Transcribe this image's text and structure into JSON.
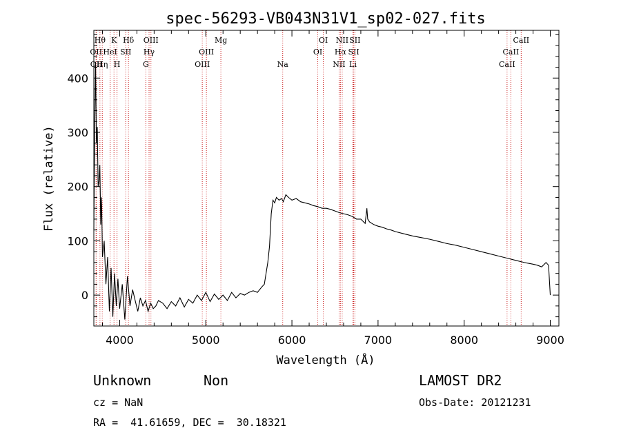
{
  "chart_data": {
    "type": "line",
    "title": "spec-56293-VB043N31V1_sp02-027.fits",
    "xlabel": "Wavelength (Å)",
    "ylabel": "Flux (relative)",
    "xlim": [
      3700,
      9100
    ],
    "ylim": [
      -57,
      488
    ],
    "xticks": [
      4000,
      5000,
      6000,
      7000,
      8000,
      9000
    ],
    "yticks": [
      0,
      100,
      200,
      300,
      400
    ],
    "grid": false,
    "line_color": "#000000",
    "marker_color": "#cc2222",
    "spectrum": {
      "x": [
        3700,
        3710,
        3720,
        3730,
        3740,
        3750,
        3760,
        3770,
        3780,
        3790,
        3800,
        3820,
        3840,
        3860,
        3880,
        3900,
        3920,
        3940,
        3960,
        3980,
        4000,
        4030,
        4060,
        4090,
        4120,
        4150,
        4180,
        4210,
        4240,
        4270,
        4300,
        4330,
        4360,
        4390,
        4420,
        4450,
        4500,
        4550,
        4600,
        4650,
        4700,
        4750,
        4800,
        4850,
        4900,
        4950,
        5000,
        5050,
        5100,
        5150,
        5200,
        5250,
        5300,
        5350,
        5400,
        5450,
        5500,
        5550,
        5600,
        5650,
        5680,
        5700,
        5720,
        5740,
        5760,
        5780,
        5800,
        5820,
        5850,
        5880,
        5900,
        5930,
        5960,
        6000,
        6050,
        6100,
        6150,
        6200,
        6250,
        6300,
        6350,
        6400,
        6450,
        6500,
        6550,
        6600,
        6650,
        6700,
        6750,
        6800,
        6850,
        6870,
        6880,
        6890,
        6900,
        6950,
        7000,
        7050,
        7100,
        7150,
        7200,
        7300,
        7400,
        7500,
        7600,
        7700,
        7800,
        7900,
        8000,
        8100,
        8200,
        8300,
        8400,
        8500,
        8600,
        8700,
        8800,
        8850,
        8900,
        8950,
        8980,
        9000
      ],
      "y": [
        120,
        300,
        430,
        280,
        310,
        200,
        210,
        240,
        130,
        180,
        70,
        100,
        20,
        70,
        -30,
        50,
        -40,
        40,
        -20,
        30,
        -25,
        20,
        -45,
        35,
        -20,
        10,
        -10,
        -30,
        -5,
        -20,
        -10,
        -30,
        -15,
        -25,
        -20,
        -10,
        -15,
        -25,
        -12,
        -20,
        -5,
        -22,
        -8,
        -15,
        0,
        -10,
        5,
        -12,
        2,
        -8,
        0,
        -10,
        5,
        -5,
        3,
        0,
        5,
        8,
        5,
        15,
        20,
        40,
        60,
        90,
        150,
        175,
        170,
        180,
        175,
        178,
        172,
        185,
        180,
        175,
        178,
        172,
        170,
        168,
        165,
        163,
        160,
        160,
        158,
        155,
        152,
        150,
        148,
        145,
        140,
        140,
        132,
        160,
        140,
        138,
        135,
        130,
        127,
        125,
        122,
        120,
        117,
        113,
        109,
        106,
        103,
        99,
        95,
        92,
        88,
        84,
        80,
        76,
        72,
        68,
        64,
        60,
        57,
        55,
        52,
        60,
        55,
        0
      ]
    },
    "line_markers": [
      {
        "wl": 3726,
        "label": "OII",
        "row": 1
      },
      {
        "wl": 3729,
        "label": "OII",
        "row": 2
      },
      {
        "wl": 3771,
        "label": "Hθ",
        "row": 0
      },
      {
        "wl": 3798,
        "label": "Hη",
        "row": 2
      },
      {
        "wl": 3889,
        "label": "HeI",
        "row": 1
      },
      {
        "wl": 3934,
        "label": "K",
        "row": 0
      },
      {
        "wl": 3969,
        "label": "H",
        "row": 2
      },
      {
        "wl": 4070,
        "label": "SII",
        "row": 1
      },
      {
        "wl": 4102,
        "label": "Hδ",
        "row": 0
      },
      {
        "wl": 4304,
        "label": "G",
        "row": 2
      },
      {
        "wl": 4341,
        "label": "Hγ",
        "row": 1
      },
      {
        "wl": 4363,
        "label": "OIII",
        "row": 0
      },
      {
        "wl": 4959,
        "label": "OIII",
        "row": 2
      },
      {
        "wl": 5007,
        "label": "OIII",
        "row": 1
      },
      {
        "wl": 5175,
        "label": "Mg",
        "row": 0
      },
      {
        "wl": 5893,
        "label": "Na",
        "row": 2
      },
      {
        "wl": 6300,
        "label": "OI",
        "row": 1
      },
      {
        "wl": 6364,
        "label": "OI",
        "row": 0
      },
      {
        "wl": 6548,
        "label": "NII",
        "row": 2
      },
      {
        "wl": 6563,
        "label": "Hα",
        "row": 1
      },
      {
        "wl": 6584,
        "label": "NII",
        "row": 0
      },
      {
        "wl": 6708,
        "label": "Li",
        "row": 2
      },
      {
        "wl": 6717,
        "label": "SII",
        "row": 1
      },
      {
        "wl": 6731,
        "label": "SII",
        "row": 0
      },
      {
        "wl": 8498,
        "label": "CaII",
        "row": 2
      },
      {
        "wl": 8542,
        "label": "CaII",
        "row": 1
      },
      {
        "wl": 8662,
        "label": "CaII",
        "row": 0
      }
    ]
  },
  "info": {
    "class": "Unknown",
    "subclass": "Non",
    "survey": "LAMOST DR2",
    "cz": "cz = NaN",
    "obs_date": "Obs-Date: 20121231",
    "coords": "RA =  41.61659, DEC =  30.18321"
  }
}
